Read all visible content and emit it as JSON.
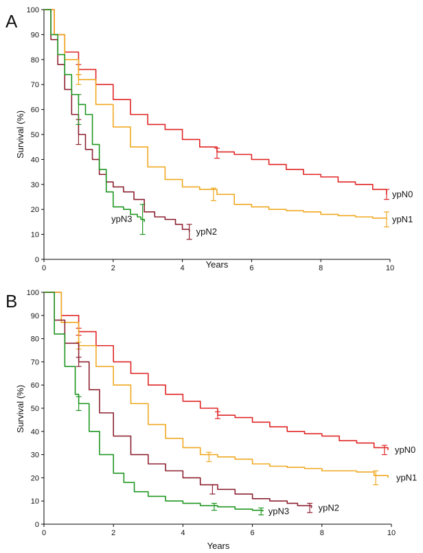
{
  "chart_data": [
    {
      "type": "line",
      "panel": "A",
      "xlabel": "Years",
      "ylabel": "Survival (%)",
      "xlim": [
        0,
        10
      ],
      "ylim": [
        0,
        100
      ],
      "xticks": [
        0,
        2,
        4,
        6,
        8,
        10
      ],
      "yticks": [
        0,
        10,
        20,
        30,
        40,
        50,
        60,
        70,
        80,
        90,
        100
      ],
      "grid": false,
      "legend": "inline labels at line ends",
      "series": [
        {
          "name": "ypN0",
          "color": "#e02424",
          "points": [
            [
              0,
              100
            ],
            [
              0.3,
              90
            ],
            [
              0.6,
              83
            ],
            [
              1.0,
              76
            ],
            [
              1.5,
              70
            ],
            [
              2.0,
              64
            ],
            [
              2.5,
              58
            ],
            [
              3.0,
              54
            ],
            [
              3.5,
              52
            ],
            [
              4.0,
              48
            ],
            [
              4.5,
              45
            ],
            [
              5.0,
              43
            ],
            [
              5.5,
              42
            ],
            [
              6.0,
              40
            ],
            [
              6.5,
              38
            ],
            [
              7.0,
              36
            ],
            [
              7.5,
              34
            ],
            [
              8.0,
              33
            ],
            [
              8.5,
              31
            ],
            [
              9.0,
              30
            ],
            [
              9.5,
              28
            ],
            [
              9.9,
              26
            ]
          ],
          "error_bars": [
            [
              1.0,
              76,
              2
            ],
            [
              5.0,
              42.5,
              2
            ],
            [
              9.9,
              26,
              2
            ]
          ]
        },
        {
          "name": "ypN1",
          "color": "#f0a820",
          "points": [
            [
              0,
              100
            ],
            [
              0.3,
              90
            ],
            [
              0.6,
              80
            ],
            [
              1.0,
              72
            ],
            [
              1.5,
              62
            ],
            [
              2.0,
              53
            ],
            [
              2.5,
              45
            ],
            [
              3.0,
              37
            ],
            [
              3.5,
              32
            ],
            [
              4.0,
              29
            ],
            [
              4.5,
              28
            ],
            [
              5.0,
              26
            ],
            [
              5.5,
              22
            ],
            [
              6.0,
              21
            ],
            [
              6.5,
              20
            ],
            [
              7.0,
              19.5
            ],
            [
              7.5,
              19
            ],
            [
              8.0,
              18
            ],
            [
              8.5,
              17.5
            ],
            [
              9.0,
              17
            ],
            [
              9.5,
              16.5
            ],
            [
              9.9,
              16
            ]
          ],
          "error_bars": [
            [
              1.0,
              72,
              2
            ],
            [
              4.9,
              26,
              2.5
            ],
            [
              9.9,
              16,
              3
            ]
          ]
        },
        {
          "name": "ypN2",
          "color": "#8c2030",
          "points": [
            [
              0,
              100
            ],
            [
              0.2,
              88
            ],
            [
              0.4,
              78
            ],
            [
              0.6,
              68
            ],
            [
              0.8,
              58
            ],
            [
              1.0,
              50
            ],
            [
              1.2,
              44
            ],
            [
              1.4,
              40
            ],
            [
              1.6,
              34
            ],
            [
              1.8,
              31
            ],
            [
              2.0,
              29
            ],
            [
              2.3,
              27
            ],
            [
              2.6,
              24
            ],
            [
              2.9,
              19
            ],
            [
              3.2,
              17
            ],
            [
              3.5,
              16
            ],
            [
              3.8,
              14
            ],
            [
              4.0,
              12
            ],
            [
              4.2,
              11
            ]
          ],
          "error_bars": [
            [
              1.0,
              51,
              5
            ],
            [
              4.2,
              11,
              3
            ]
          ]
        },
        {
          "name": "ypN3",
          "color": "#1e9620",
          "points": [
            [
              0,
              100
            ],
            [
              0.2,
              90
            ],
            [
              0.4,
              82
            ],
            [
              0.6,
              74
            ],
            [
              0.8,
              66
            ],
            [
              1.0,
              62
            ],
            [
              1.2,
              58
            ],
            [
              1.4,
              46
            ],
            [
              1.6,
              36
            ],
            [
              1.8,
              27
            ],
            [
              2.0,
              21
            ],
            [
              2.3,
              20
            ],
            [
              2.5,
              18
            ],
            [
              2.7,
              17
            ],
            [
              2.8,
              16
            ],
            [
              2.9,
              15
            ]
          ],
          "error_bars": [
            [
              1.0,
              60,
              6
            ],
            [
              2.85,
              16,
              6
            ]
          ]
        }
      ]
    },
    {
      "type": "line",
      "panel": "B",
      "xlabel": "Years",
      "ylabel": "Survival (%)",
      "xlim": [
        0,
        10
      ],
      "ylim": [
        0,
        100
      ],
      "xticks": [
        0,
        2,
        4,
        6,
        8,
        10
      ],
      "yticks": [
        0,
        10,
        20,
        30,
        40,
        50,
        60,
        70,
        80,
        90,
        100
      ],
      "grid": false,
      "legend": "inline labels at line ends",
      "series": [
        {
          "name": "ypN0",
          "color": "#e02424",
          "points": [
            [
              0,
              100
            ],
            [
              0.5,
              90
            ],
            [
              1.0,
              83
            ],
            [
              1.5,
              77
            ],
            [
              2.0,
              70
            ],
            [
              2.5,
              65
            ],
            [
              3.0,
              60
            ],
            [
              3.5,
              56
            ],
            [
              4.0,
              53
            ],
            [
              4.5,
              50
            ],
            [
              5.0,
              47
            ],
            [
              5.5,
              46
            ],
            [
              6.0,
              44
            ],
            [
              6.5,
              42
            ],
            [
              7.0,
              40
            ],
            [
              7.5,
              39
            ],
            [
              8.0,
              38
            ],
            [
              8.5,
              36
            ],
            [
              9.0,
              35
            ],
            [
              9.5,
              33
            ],
            [
              9.9,
              32
            ]
          ],
          "error_bars": [
            [
              1.0,
              83,
              1.5
            ],
            [
              5.0,
              47,
              1.5
            ],
            [
              9.8,
              32,
              2
            ]
          ]
        },
        {
          "name": "ypN1",
          "color": "#f0a820",
          "points": [
            [
              0,
              100
            ],
            [
              0.5,
              87
            ],
            [
              1.0,
              77
            ],
            [
              1.5,
              68
            ],
            [
              2.0,
              60
            ],
            [
              2.5,
              52
            ],
            [
              3.0,
              43
            ],
            [
              3.5,
              37
            ],
            [
              4.0,
              33
            ],
            [
              4.5,
              30
            ],
            [
              5.0,
              29
            ],
            [
              5.5,
              28
            ],
            [
              6.0,
              26
            ],
            [
              6.5,
              25
            ],
            [
              7.0,
              24.5
            ],
            [
              7.5,
              24
            ],
            [
              8.0,
              23
            ],
            [
              8.5,
              23
            ],
            [
              9.0,
              22.5
            ],
            [
              9.5,
              21
            ],
            [
              9.9,
              20
            ]
          ],
          "error_bars": [
            [
              1.0,
              77,
              1.5
            ],
            [
              4.75,
              29,
              2
            ],
            [
              9.55,
              20,
              3
            ]
          ]
        },
        {
          "name": "ypN2",
          "color": "#8c2030",
          "points": [
            [
              0,
              100
            ],
            [
              0.3,
              88
            ],
            [
              0.6,
              78
            ],
            [
              1.0,
              70
            ],
            [
              1.3,
              58
            ],
            [
              1.6,
              48
            ],
            [
              2.0,
              38
            ],
            [
              2.5,
              30
            ],
            [
              3.0,
              26
            ],
            [
              3.5,
              23
            ],
            [
              4.0,
              20
            ],
            [
              4.5,
              17
            ],
            [
              5.0,
              15
            ],
            [
              5.5,
              13
            ],
            [
              6.0,
              11
            ],
            [
              6.5,
              10
            ],
            [
              7.0,
              9
            ],
            [
              7.3,
              8
            ],
            [
              7.7,
              7
            ]
          ],
          "error_bars": [
            [
              1.0,
              70,
              2
            ],
            [
              4.85,
              15,
              2
            ],
            [
              7.65,
              7,
              2
            ]
          ]
        },
        {
          "name": "ypN3",
          "color": "#1e9620",
          "points": [
            [
              0,
              100
            ],
            [
              0.3,
              82
            ],
            [
              0.6,
              68
            ],
            [
              0.9,
              56
            ],
            [
              1.0,
              52
            ],
            [
              1.3,
              40
            ],
            [
              1.6,
              30
            ],
            [
              2.0,
              22
            ],
            [
              2.3,
              18
            ],
            [
              2.6,
              14
            ],
            [
              3.0,
              12
            ],
            [
              3.5,
              10
            ],
            [
              4.0,
              9
            ],
            [
              4.5,
              8
            ],
            [
              5.0,
              7.5
            ],
            [
              5.5,
              6.5
            ],
            [
              6.0,
              6
            ],
            [
              6.3,
              5.5
            ]
          ],
          "error_bars": [
            [
              1.0,
              52,
              3
            ],
            [
              4.9,
              7.5,
              1.5
            ],
            [
              6.25,
              5.5,
              1.5
            ]
          ]
        }
      ]
    }
  ]
}
